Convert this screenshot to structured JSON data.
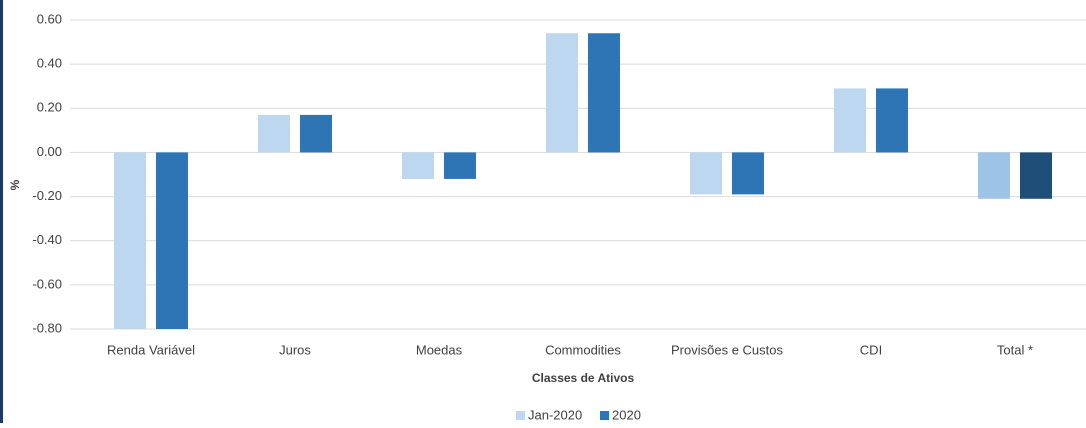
{
  "chart_data": {
    "type": "bar",
    "x_label": "Classes de Ativos",
    "y_label": "%",
    "categories": [
      "Renda Variável",
      "Juros",
      "Moedas",
      "Commodities",
      "Provisões e Custos",
      "CDI",
      "Total *"
    ],
    "series": [
      {
        "name": "Jan-2020",
        "color": "#bdd7ee",
        "colors": [
          "#bdd7ee",
          "#bdd7ee",
          "#bdd7ee",
          "#bdd7ee",
          "#bdd7ee",
          "#bdd7ee",
          "#9dc3e6"
        ],
        "values": [
          -0.8,
          0.17,
          -0.12,
          0.54,
          -0.19,
          0.29,
          -0.21
        ]
      },
      {
        "name": "2020",
        "color": "#2e75b6",
        "colors": [
          "#2e75b6",
          "#2e75b6",
          "#2e75b6",
          "#2e75b6",
          "#2e75b6",
          "#2e75b6",
          "#1f4e79"
        ],
        "values": [
          -0.8,
          0.17,
          -0.12,
          0.54,
          -0.19,
          0.29,
          -0.21
        ]
      }
    ],
    "ylim": [
      -0.8,
      0.6
    ],
    "yticks": [
      {
        "value": -0.8,
        "label": "-0.80"
      },
      {
        "value": -0.6,
        "label": "-0.60"
      },
      {
        "value": -0.4,
        "label": "-0.40"
      },
      {
        "value": -0.2,
        "label": "-0.20"
      },
      {
        "value": 0,
        "label": "0.00"
      },
      {
        "value": 0.2,
        "label": "0.20"
      },
      {
        "value": 0.4,
        "label": "0.40"
      },
      {
        "value": 0.6,
        "label": "0.60"
      }
    ],
    "grid": true,
    "legend": "bottom"
  }
}
